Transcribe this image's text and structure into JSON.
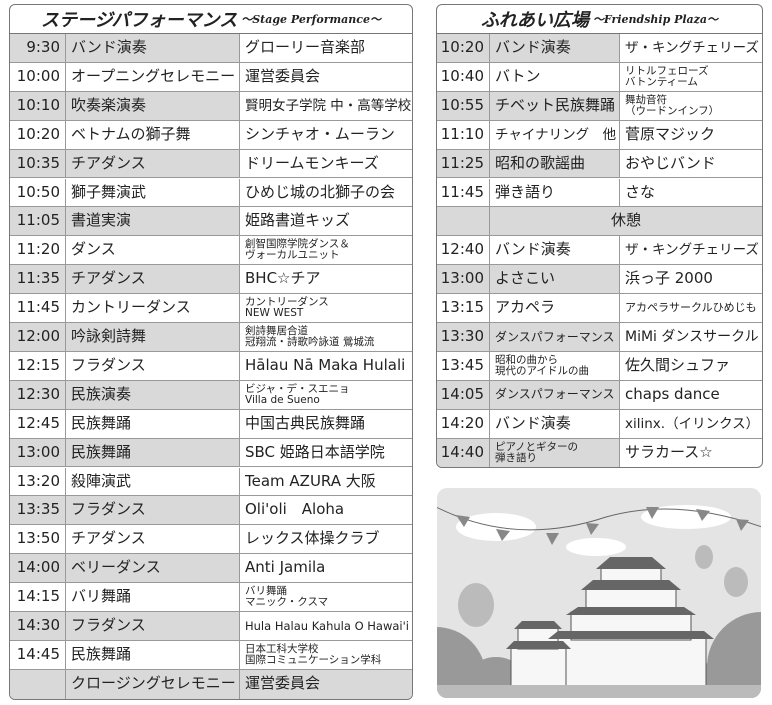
{
  "stage": {
    "title": "ステージパフォーマンス",
    "subtitle": "～Stage Performance～",
    "rows": [
      [
        "9:30",
        "バンド演奏",
        "グローリー音楽部"
      ],
      [
        "10:00",
        "オープニングセレモニー",
        "運営委員会"
      ],
      [
        "10:10",
        "吹奏楽演奏",
        "賢明女子学院 中・高等学校"
      ],
      [
        "10:20",
        "ベトナムの獅子舞",
        "シンチャオ・ムーラン"
      ],
      [
        "10:35",
        "チアダンス",
        "ドリームモンキーズ"
      ],
      [
        "10:50",
        "獅子舞演武",
        "ひめじ城の北獅子の会"
      ],
      [
        "11:05",
        "書道実演",
        "姫路書道キッズ"
      ],
      [
        "11:20",
        "ダンス",
        [
          "創智国際学院ダンス＆",
          "ヴォーカルユニット"
        ]
      ],
      [
        "11:35",
        "チアダンス",
        "BHC☆チア"
      ],
      [
        "11:45",
        "カントリーダンス",
        [
          "カントリーダンス",
          "NEW WEST"
        ]
      ],
      [
        "12:00",
        "吟詠剣詩舞",
        [
          "剣詩舞居合道",
          "冠翔流・詩歌吟詠道 鶯城流"
        ]
      ],
      [
        "12:15",
        "フラダンス",
        "Hālau Nā Maka Hulali"
      ],
      [
        "12:30",
        "民族演奏",
        [
          "ビジャ・デ・スエニョ",
          "Villa de Sueno"
        ]
      ],
      [
        "12:45",
        "民族舞踊",
        "中国古典民族舞踊"
      ],
      [
        "13:00",
        "民族舞踊",
        "SBC 姫路日本語学院"
      ],
      [
        "13:20",
        "殺陣演武",
        "Team AZURA 大阪"
      ],
      [
        "13:35",
        "フラダンス",
        "Oli'oli　Aloha"
      ],
      [
        "13:50",
        "チアダンス",
        "レックス体操クラブ"
      ],
      [
        "14:00",
        "ベリーダンス",
        "Anti Jamila"
      ],
      [
        "14:15",
        "バリ舞踊",
        [
          "バリ舞踊",
          "マニック・クスマ"
        ]
      ],
      [
        "14:30",
        "フラダンス",
        "Hula Halau Kahula O Hawai'i"
      ],
      [
        "14:45",
        "民族舞踊",
        [
          "日本工科大学校",
          "国際コミュニケーション学科"
        ]
      ],
      [
        null,
        "クロージングセレモニー",
        "運営委員会"
      ]
    ]
  },
  "plaza": {
    "title": "ふれあい広場",
    "subtitle": "～Friendship Plaza～",
    "rows": [
      [
        "10:20",
        "バンド演奏",
        "ザ・キングチェリーズ"
      ],
      [
        "10:40",
        "バトン",
        [
          "リトルフェローズ",
          "バトンティーム"
        ]
      ],
      [
        "10:55",
        "チベット民族舞踊",
        [
          "舞劫音符",
          "（ウードンインフ）"
        ]
      ],
      [
        "11:10",
        "チャイナリング　他",
        "菅原マジック"
      ],
      [
        "11:25",
        "昭和の歌謡曲",
        "おやじバンド"
      ],
      [
        "11:45",
        "弾き語り",
        "さな"
      ],
      [
        "休憩"
      ],
      [
        "12:40",
        "バンド演奏",
        "ザ・キングチェリーズ"
      ],
      [
        "13:00",
        "よさこい",
        "浜っ子 2000"
      ],
      [
        "13:15",
        "アカペラ",
        "アカペラサークルひめじも"
      ],
      [
        "13:30",
        "ダンスパフォーマンス",
        "MiMi ダンスサークル"
      ],
      [
        "13:45",
        [
          "昭和の曲から",
          "現代のアイドルの曲"
        ],
        "佐久間シュファ"
      ],
      [
        "14:05",
        "ダンスパフォーマンス",
        "chaps dance"
      ],
      [
        "14:20",
        "バンド演奏",
        "xilinx.（イリンクス）"
      ],
      [
        "14:40",
        [
          "ピアノとギターの",
          "弾き語り"
        ],
        "サラカース☆"
      ]
    ]
  }
}
